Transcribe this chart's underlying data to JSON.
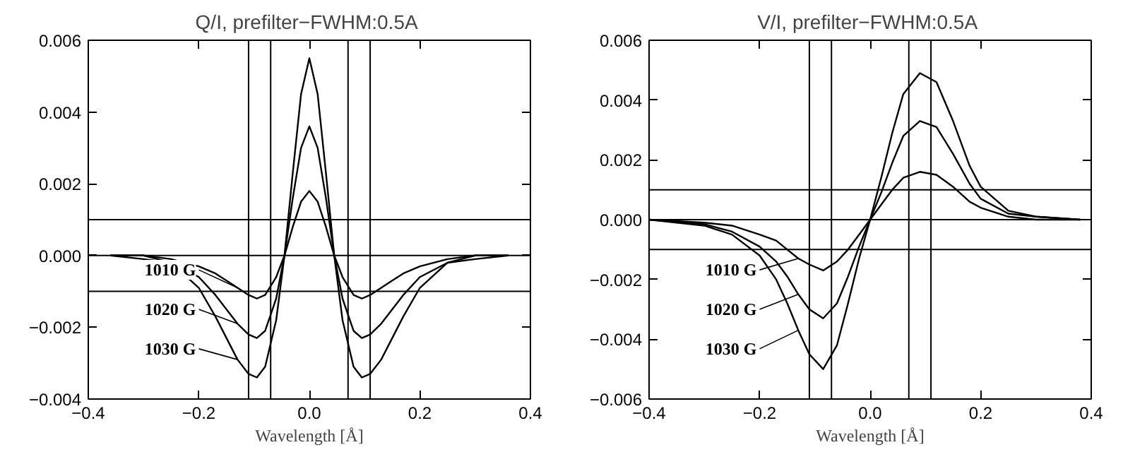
{
  "chart_data": [
    {
      "type": "line",
      "title": "Q/I,  prefilter−FWHM:0.5A",
      "xlabel": "Wavelength [Å]",
      "x": [
        -0.36,
        -0.3,
        -0.25,
        -0.2,
        -0.17,
        -0.15,
        -0.13,
        -0.11,
        -0.095,
        -0.08,
        -0.06,
        -0.045,
        -0.03,
        -0.015,
        0,
        0.015,
        0.03,
        0.045,
        0.06,
        0.08,
        0.095,
        0.11,
        0.13,
        0.15,
        0.17,
        0.2,
        0.25,
        0.3,
        0.36
      ],
      "series": [
        {
          "name": "1010 G",
          "color": "#000000",
          "values": [
            0,
            0,
            -0.0001,
            -0.0003,
            -0.0005,
            -0.0007,
            -0.0009,
            -0.0011,
            -0.0012,
            -0.0011,
            -0.0006,
            0,
            0.0008,
            0.0015,
            0.0018,
            0.0015,
            0.0008,
            0,
            -0.0006,
            -0.0011,
            -0.0012,
            -0.0011,
            -0.0009,
            -0.0007,
            -0.0005,
            -0.0003,
            -0.0001,
            0,
            0
          ]
        },
        {
          "name": "1020 G",
          "color": "#000000",
          "values": [
            0,
            0,
            -0.0002,
            -0.0006,
            -0.0011,
            -0.0015,
            -0.0019,
            -0.0022,
            -0.0023,
            -0.0021,
            -0.0012,
            0,
            0.0016,
            0.003,
            0.0036,
            0.003,
            0.0016,
            0,
            -0.0012,
            -0.0021,
            -0.0023,
            -0.0022,
            -0.0019,
            -0.0015,
            -0.0011,
            -0.0006,
            -0.0002,
            0,
            0
          ]
        },
        {
          "name": "1030 G",
          "color": "#000000",
          "values": [
            0,
            -0.0001,
            -0.0002,
            -0.0009,
            -0.0017,
            -0.0023,
            -0.0029,
            -0.0033,
            -0.0034,
            -0.0031,
            -0.0018,
            0,
            0.0023,
            0.0045,
            0.0055,
            0.0045,
            0.0023,
            0,
            -0.0018,
            -0.0031,
            -0.0034,
            -0.0033,
            -0.0029,
            -0.0023,
            -0.0017,
            -0.0009,
            -0.0002,
            -0.0001,
            0
          ]
        }
      ],
      "xlim": [
        -0.4,
        0.4
      ],
      "ylim": [
        -0.004,
        0.006
      ],
      "xticks": [
        {
          "value": -0.4,
          "label": "−0.4"
        },
        {
          "value": -0.2,
          "label": "−0.2"
        },
        {
          "value": 0,
          "label": "0.0"
        },
        {
          "value": 0.2,
          "label": "0.2"
        },
        {
          "value": 0.4,
          "label": "0.4"
        }
      ],
      "yticks": [
        {
          "value": -0.004,
          "label": "−0.004"
        },
        {
          "value": -0.002,
          "label": "−0.002"
        },
        {
          "value": 0,
          "label": "0.000"
        },
        {
          "value": 0.002,
          "label": "0.002"
        },
        {
          "value": 0.004,
          "label": "0.004"
        },
        {
          "value": 0.006,
          "label": "0.006"
        }
      ],
      "ref_lines": [
        {
          "axis": "x",
          "value": -0.11
        },
        {
          "axis": "x",
          "value": -0.07
        },
        {
          "axis": "x",
          "value": 0.07
        },
        {
          "axis": "x",
          "value": 0.11
        },
        {
          "axis": "y",
          "value": 0.001
        },
        {
          "axis": "y",
          "value": 0
        },
        {
          "axis": "y",
          "value": -0.001
        }
      ],
      "grid": false,
      "legend": "bottom left"
    },
    {
      "type": "line",
      "title": "V/I,  prefilter−FWHM:0.5A",
      "xlabel": "Wavelength [Å]",
      "x": [
        -0.4,
        -0.3,
        -0.25,
        -0.2,
        -0.17,
        -0.15,
        -0.13,
        -0.11,
        -0.085,
        -0.06,
        -0.04,
        -0.02,
        0,
        0.02,
        0.04,
        0.06,
        0.09,
        0.12,
        0.15,
        0.18,
        0.2,
        0.25,
        0.3,
        0.38
      ],
      "series": [
        {
          "name": "1010 G",
          "color": "#000000",
          "values": [
            0,
            -0.0001,
            -0.0002,
            -0.0005,
            -0.0007,
            -0.001,
            -0.0013,
            -0.0015,
            -0.0017,
            -0.0014,
            -0.001,
            -0.0005,
            0,
            0.0005,
            0.001,
            0.0014,
            0.0016,
            0.0015,
            0.0011,
            0.0006,
            0.0004,
            0.0001,
            0,
            0
          ]
        },
        {
          "name": "1020 G",
          "color": "#000000",
          "values": [
            0,
            -0.00015,
            -0.0004,
            -0.0009,
            -0.0014,
            -0.0019,
            -0.0025,
            -0.003,
            -0.0033,
            -0.0028,
            -0.0019,
            -0.0009,
            0,
            0.0009,
            0.0019,
            0.0028,
            0.0033,
            0.0031,
            0.0022,
            0.0012,
            0.0007,
            0.0002,
            0.0001,
            0
          ]
        },
        {
          "name": "1030 G",
          "color": "#000000",
          "values": [
            0,
            -0.0002,
            -0.0005,
            -0.0012,
            -0.002,
            -0.0028,
            -0.0037,
            -0.0045,
            -0.005,
            -0.0042,
            -0.0028,
            -0.0013,
            0,
            0.0014,
            0.0029,
            0.0042,
            0.0049,
            0.0046,
            0.0033,
            0.0018,
            0.0011,
            0.0003,
            0.0001,
            0
          ]
        }
      ],
      "xlim": [
        -0.4,
        0.4
      ],
      "ylim": [
        -0.006,
        0.006
      ],
      "xticks": [
        {
          "value": -0.4,
          "label": "−0.4"
        },
        {
          "value": -0.2,
          "label": "−0.2"
        },
        {
          "value": 0,
          "label": "0.0"
        },
        {
          "value": 0.2,
          "label": "0.2"
        },
        {
          "value": 0.4,
          "label": "0.4"
        }
      ],
      "yticks": [
        {
          "value": -0.006,
          "label": "−0.006"
        },
        {
          "value": -0.004,
          "label": "−0.004"
        },
        {
          "value": -0.002,
          "label": "−0.002"
        },
        {
          "value": 0,
          "label": "0.000"
        },
        {
          "value": 0.002,
          "label": "0.002"
        },
        {
          "value": 0.004,
          "label": "0.004"
        },
        {
          "value": 0.006,
          "label": "0.006"
        }
      ],
      "ref_lines": [
        {
          "axis": "x",
          "value": -0.11
        },
        {
          "axis": "x",
          "value": -0.07
        },
        {
          "axis": "x",
          "value": 0.07
        },
        {
          "axis": "x",
          "value": 0.11
        },
        {
          "axis": "y",
          "value": 0.001
        },
        {
          "axis": "y",
          "value": 0
        },
        {
          "axis": "y",
          "value": -0.001
        }
      ],
      "grid": false,
      "legend": "bottom left"
    }
  ]
}
